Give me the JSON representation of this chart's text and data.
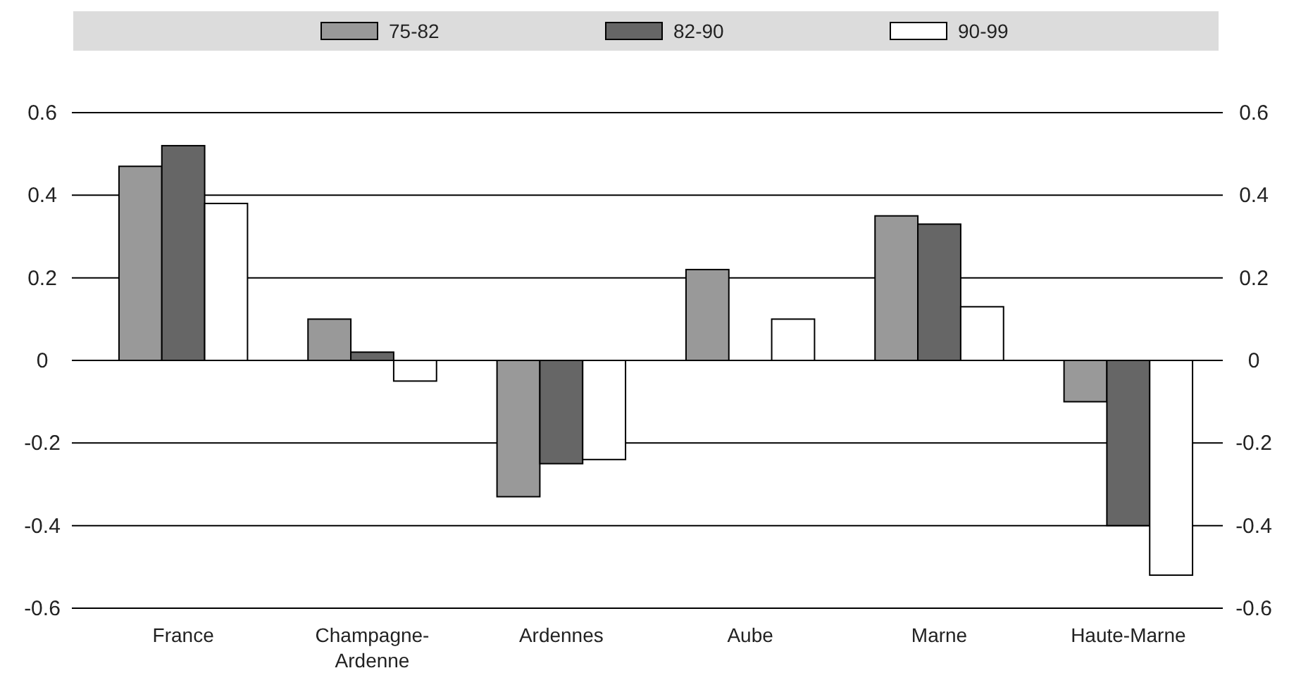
{
  "chart_data": {
    "type": "bar",
    "categories": [
      "France",
      "Champagne-Ardenne",
      "Ardennes",
      "Aube",
      "Marne",
      "Haute-Marne"
    ],
    "series": [
      {
        "name": "75-82",
        "color": "#999999",
        "values": [
          0.47,
          0.1,
          -0.33,
          0.22,
          0.35,
          -0.1
        ]
      },
      {
        "name": "82-90",
        "color": "#666666",
        "values": [
          0.52,
          0.02,
          -0.25,
          null,
          0.33,
          -0.4
        ]
      },
      {
        "name": "90-99",
        "color": "#ffffff",
        "values": [
          0.38,
          -0.05,
          -0.24,
          0.1,
          0.13,
          -0.52
        ]
      }
    ],
    "ylim": [
      -0.6,
      0.6
    ],
    "yticks": [
      -0.6,
      -0.4,
      -0.2,
      0,
      0.2,
      0.4,
      0.6
    ],
    "y2lim": [
      -0.6,
      0.6
    ],
    "y2ticks": [
      -0.6,
      -0.4,
      -0.2,
      0,
      0.2,
      0.4,
      0.6
    ],
    "grid": "y",
    "legend": "top"
  }
}
